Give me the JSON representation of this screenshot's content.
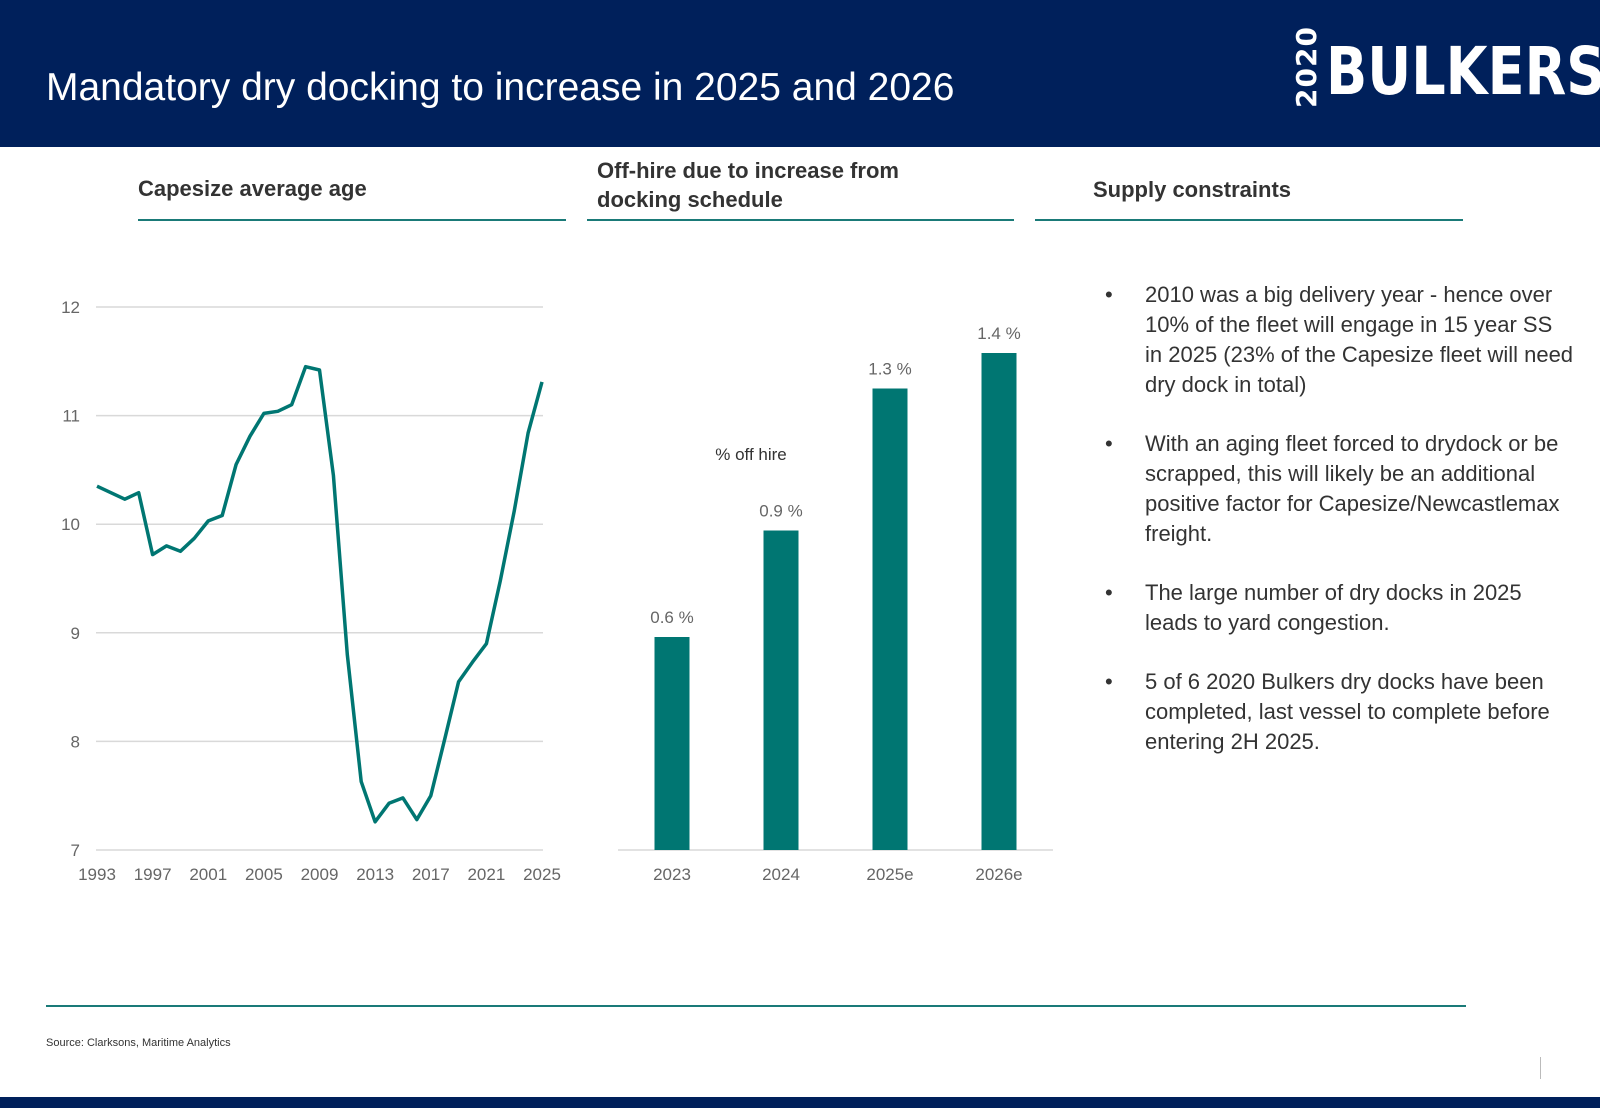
{
  "header": {
    "title": "Mandatory dry docking to increase in 2025 and 2026",
    "logo_year": "2020",
    "logo_word": "BULKERS"
  },
  "panels": {
    "left_title": "Capesize average age",
    "middle_title_line1": "Off-hire due to increase from",
    "middle_title_line2": "docking schedule",
    "right_title": "Supply constraints"
  },
  "bullets": [
    "2010 was a big delivery year - hence over 10% of the fleet will engage in 15 year SS in 2025 (23% of the Capesize fleet will need dry dock in total)",
    "With an aging fleet forced to drydock or be scrapped, this will likely be an additional positive factor for Capesize/Newcastlemax freight.",
    "The large number of dry docks in 2025 leads to yard congestion.",
    "5 of 6 2020 Bulkers dry docks have been completed, last vessel to complete before entering 2H 2025."
  ],
  "bullet_symbol": "•",
  "footer": {
    "source": "Source: Clarksons, Maritime Analytics"
  },
  "colors": {
    "navy": "#00205b",
    "teal": "#007672",
    "rule": "#1a7a78"
  },
  "chart_data": [
    {
      "type": "line",
      "title": "Capesize average age",
      "x": [
        1993,
        1994,
        1995,
        1996,
        1997,
        1998,
        1999,
        2000,
        2001,
        2002,
        2003,
        2004,
        2005,
        2006,
        2007,
        2008,
        2009,
        2010,
        2011,
        2012,
        2013,
        2014,
        2015,
        2016,
        2017,
        2018,
        2019,
        2020,
        2021,
        2022,
        2023,
        2024,
        2025
      ],
      "values": [
        10.35,
        10.29,
        10.23,
        10.29,
        9.72,
        9.8,
        9.75,
        9.87,
        10.03,
        10.08,
        10.55,
        10.81,
        11.02,
        11.04,
        11.1,
        11.45,
        11.42,
        10.45,
        8.8,
        7.63,
        7.26,
        7.43,
        7.48,
        7.28,
        7.5,
        8.02,
        8.55,
        8.73,
        8.9,
        9.48,
        10.12,
        10.84,
        11.31
      ],
      "x_ticks": [
        "1993",
        "1997",
        "2001",
        "2005",
        "2009",
        "2013",
        "2017",
        "2021",
        "2025"
      ],
      "y_ticks": [
        "7",
        "8",
        "9",
        "10",
        "11",
        "12"
      ],
      "ylim": [
        7,
        12
      ],
      "grid": true
    },
    {
      "type": "bar",
      "title": "Off-hire due to increase from docking schedule",
      "series_label": "% off hire",
      "categories": [
        "2023",
        "2024",
        "2025e",
        "2026e"
      ],
      "values": [
        0.6,
        0.9,
        1.3,
        1.4
      ],
      "value_labels": [
        "0.6 %",
        "0.9 %",
        "1.3 %",
        "1.4 %"
      ]
    }
  ]
}
